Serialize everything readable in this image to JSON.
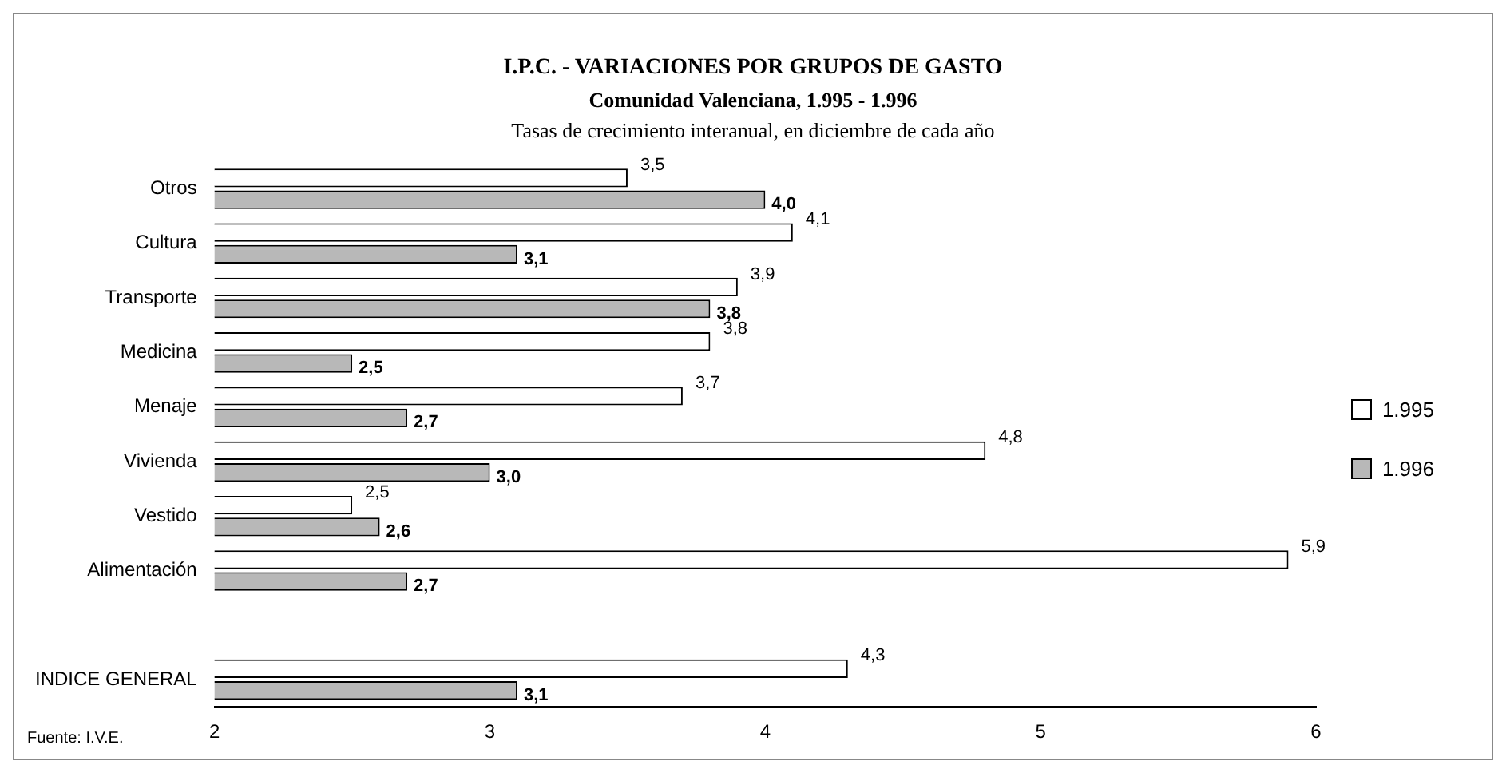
{
  "chart_data": {
    "type": "bar",
    "orientation": "horizontal",
    "title": "I.P.C. - VARIACIONES POR GRUPOS DE GASTO",
    "subtitle": "Comunidad Valenciana, 1.995 - 1.996",
    "annotations": [
      "Tasas de crecimiento interanual, en diciembre de cada año",
      "Fuente: I.V.E."
    ],
    "categories": [
      "Otros",
      "Cultura",
      "Transporte",
      "Medicina",
      "Menaje",
      "Vivienda",
      "Vestido",
      "Alimentación",
      null,
      "INDICE GENERAL"
    ],
    "series": [
      {
        "name": "1.995",
        "color": "#ffffff",
        "values": [
          3.5,
          4.1,
          3.9,
          3.8,
          3.7,
          4.8,
          2.5,
          5.9,
          null,
          4.3
        ],
        "value_labels": [
          "3,5",
          "4,1",
          "3,9",
          "3,8",
          "3,7",
          "4,8",
          "2,5",
          "5,9",
          null,
          "4,3"
        ]
      },
      {
        "name": "1.996",
        "color": "#b8b8b8",
        "values": [
          4.0,
          3.1,
          3.8,
          2.5,
          2.7,
          3.0,
          2.6,
          2.7,
          null,
          3.1
        ],
        "value_labels": [
          "4,0",
          "3,1",
          "3,8",
          "2,5",
          "2,7",
          "3,0",
          "2,6",
          "2,7",
          null,
          "3,1"
        ]
      }
    ],
    "xlim": [
      2,
      6
    ],
    "xticks": [
      2,
      3,
      4,
      5,
      6
    ],
    "grid": false,
    "legend": "right"
  }
}
